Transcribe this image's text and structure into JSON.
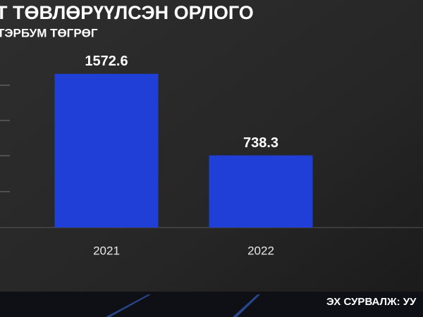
{
  "chart_data": {
    "type": "bar",
    "title": "Т ТӨВЛӨРҮҮЛСЭН ОРЛОГО",
    "subtitle": "ТЭРБУМ ТӨГРӨГ",
    "categories": [
      "2021",
      "2022"
    ],
    "values": [
      1572.6,
      738.3
    ],
    "color": "#1f3fd6",
    "ylim": [
      0,
      1600
    ],
    "source": "ЭХ СУРВАЛЖ: УУ"
  }
}
